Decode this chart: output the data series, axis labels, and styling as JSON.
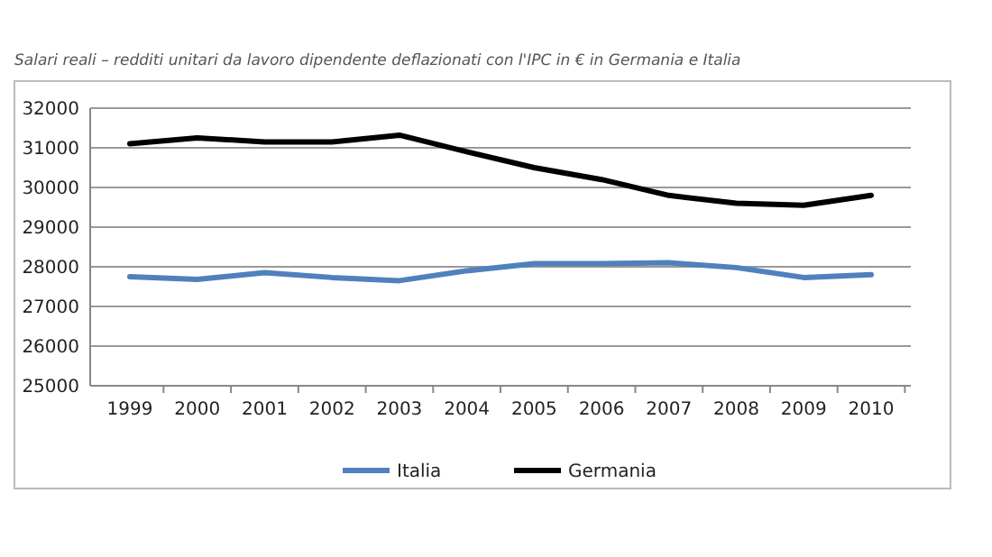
{
  "chart_data": {
    "type": "line",
    "title": "Salari reali – redditi unitari da lavoro dipendente deflazionati con l'IPC in € in Germania e Italia",
    "categories": [
      "1999",
      "2000",
      "2001",
      "2002",
      "2003",
      "2004",
      "2005",
      "2006",
      "2007",
      "2008",
      "2009",
      "2010"
    ],
    "series": [
      {
        "name": "Italia",
        "color": "#4f81bd",
        "values": [
          27750,
          27680,
          27850,
          27730,
          27650,
          27900,
          28080,
          28080,
          28100,
          27980,
          27730,
          27800
        ]
      },
      {
        "name": "Germania",
        "color": "#000000",
        "values": [
          31100,
          31250,
          31150,
          31150,
          31320,
          30900,
          30500,
          30200,
          29800,
          29600,
          29550,
          29800
        ]
      }
    ],
    "ylim": [
      25000,
      32000
    ],
    "yticks": [
      25000,
      26000,
      27000,
      28000,
      29000,
      30000,
      31000,
      32000
    ],
    "grid": "y",
    "legend": "bottom",
    "marker": "none",
    "line_style": "solid"
  }
}
